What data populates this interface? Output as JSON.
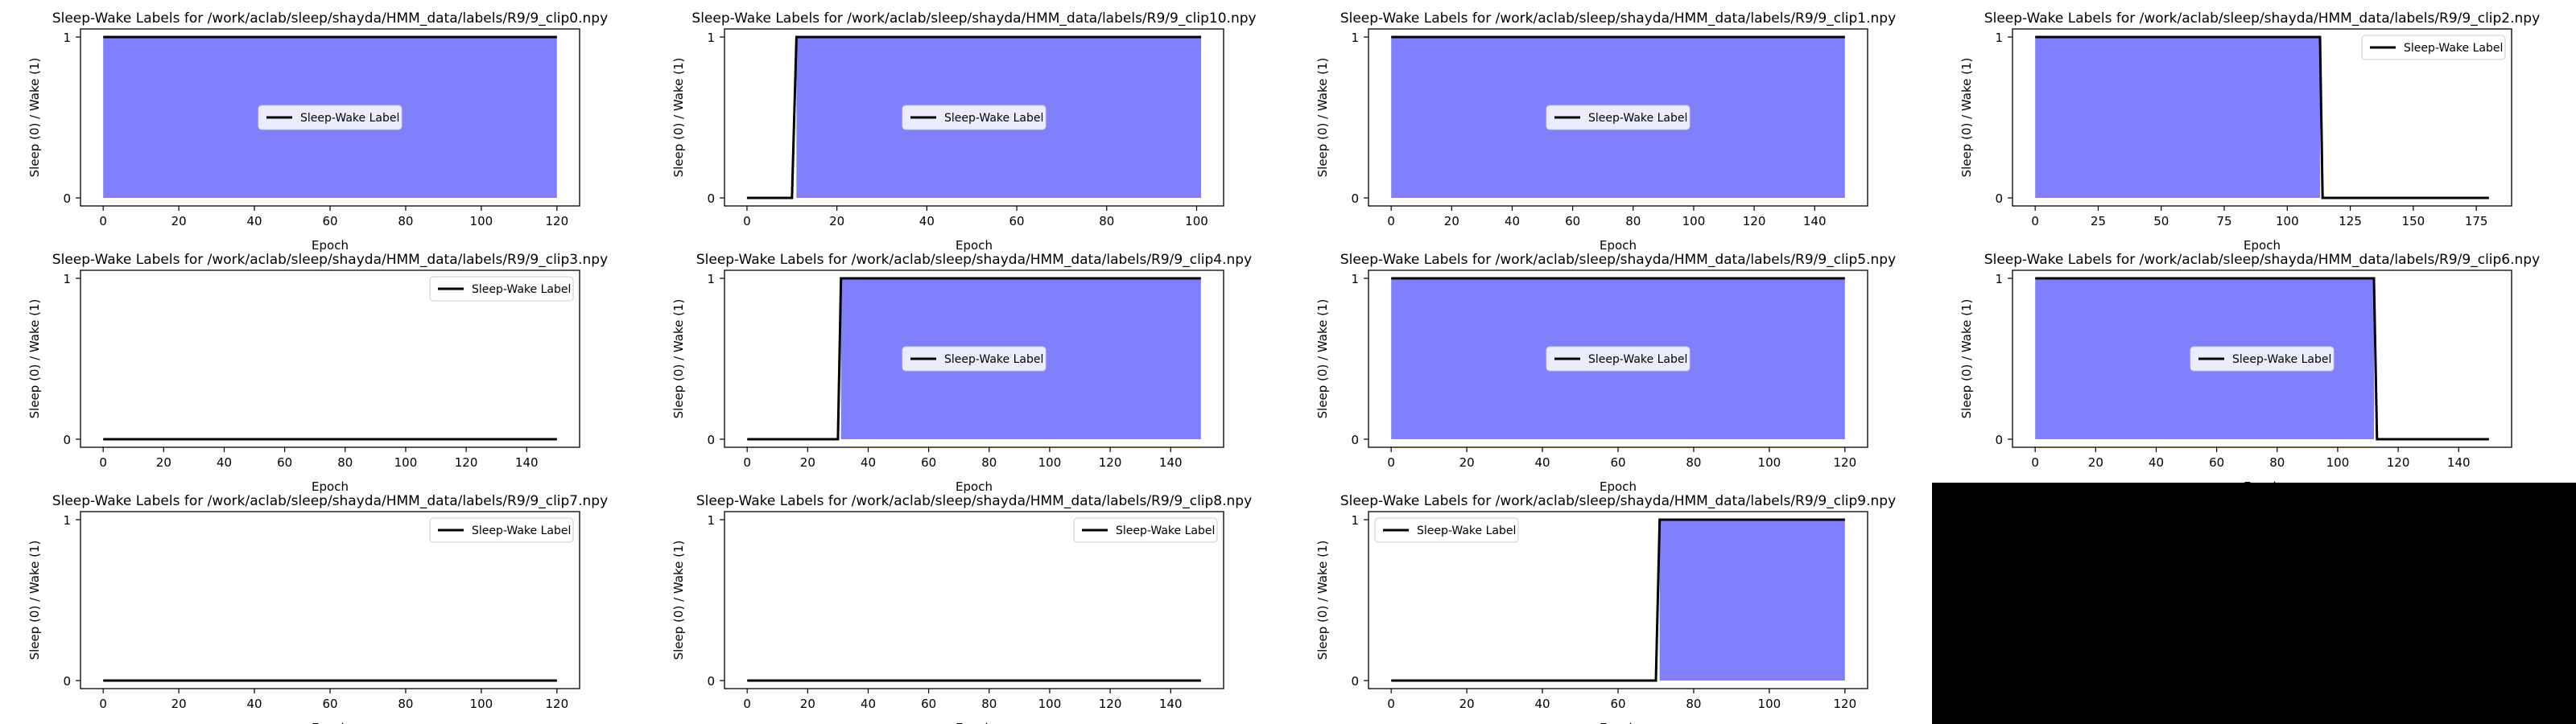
{
  "figure": {
    "ylabel": "Sleep (0) / Wake (1)",
    "xlabel_clipped": "Epoch",
    "legend_label": "Sleep-Wake Label",
    "yticks": [
      "0",
      "1"
    ],
    "colors": {
      "line": "#000000",
      "fill": "#8080ff",
      "axes": "#000000",
      "background": "#ffffff",
      "black_panel": "#000000"
    }
  },
  "chart_data": [
    {
      "type": "area",
      "title": "Sleep-Wake Labels for /work/aclab/sleep/shayda/HMM_data/labels/R9/9_clip0.npy",
      "xlim": [
        -6,
        126
      ],
      "ylim": [
        -0.05,
        1.05
      ],
      "xticks": [
        0,
        20,
        40,
        60,
        80,
        100,
        120
      ],
      "segments": [
        [
          0,
          120,
          1
        ]
      ],
      "legend": "center"
    },
    {
      "type": "area",
      "title": "Sleep-Wake Labels for /work/aclab/sleep/shayda/HMM_data/labels/R9/9_clip10.npy",
      "xlim": [
        -5,
        106
      ],
      "ylim": [
        -0.05,
        1.05
      ],
      "xticks": [
        0,
        20,
        40,
        60,
        80,
        100
      ],
      "segments": [
        [
          0,
          10,
          0
        ],
        [
          11,
          101,
          1
        ]
      ],
      "legend": "center"
    },
    {
      "type": "area",
      "title": "Sleep-Wake Labels for /work/aclab/sleep/shayda/HMM_data/labels/R9/9_clip1.npy",
      "xlim": [
        -7.5,
        157.5
      ],
      "ylim": [
        -0.05,
        1.05
      ],
      "xticks": [
        0,
        20,
        40,
        60,
        80,
        100,
        120,
        140
      ],
      "segments": [
        [
          0,
          150,
          1
        ]
      ],
      "legend": "center"
    },
    {
      "type": "area",
      "title": "Sleep-Wake Labels for /work/aclab/sleep/shayda/HMM_data/labels/R9/9_clip2.npy",
      "xlim": [
        -9,
        189
      ],
      "ylim": [
        -0.05,
        1.05
      ],
      "xticks": [
        0,
        25,
        50,
        75,
        100,
        125,
        150,
        175
      ],
      "segments": [
        [
          0,
          113,
          1
        ],
        [
          114,
          180,
          0
        ]
      ],
      "legend": "upper right"
    },
    {
      "type": "area",
      "title": "Sleep-Wake Labels for /work/aclab/sleep/shayda/HMM_data/labels/R9/9_clip3.npy",
      "xlim": [
        -7.5,
        157.5
      ],
      "ylim": [
        -0.05,
        1.05
      ],
      "xticks": [
        0,
        20,
        40,
        60,
        80,
        100,
        120,
        140
      ],
      "segments": [
        [
          0,
          150,
          0
        ]
      ],
      "legend": "upper right"
    },
    {
      "type": "area",
      "title": "Sleep-Wake Labels for /work/aclab/sleep/shayda/HMM_data/labels/R9/9_clip4.npy",
      "xlim": [
        -7.5,
        157.5
      ],
      "ylim": [
        -0.05,
        1.05
      ],
      "xticks": [
        0,
        20,
        40,
        60,
        80,
        100,
        120,
        140
      ],
      "segments": [
        [
          0,
          30,
          0
        ],
        [
          31,
          150,
          1
        ]
      ],
      "legend": "center"
    },
    {
      "type": "area",
      "title": "Sleep-Wake Labels for /work/aclab/sleep/shayda/HMM_data/labels/R9/9_clip5.npy",
      "xlim": [
        -6,
        126
      ],
      "ylim": [
        -0.05,
        1.05
      ],
      "xticks": [
        0,
        20,
        40,
        60,
        80,
        100,
        120
      ],
      "segments": [
        [
          0,
          120,
          1
        ]
      ],
      "legend": "center"
    },
    {
      "type": "area",
      "title": "Sleep-Wake Labels for /work/aclab/sleep/shayda/HMM_data/labels/R9/9_clip6.npy",
      "xlim": [
        -7.5,
        157.5
      ],
      "ylim": [
        -0.05,
        1.05
      ],
      "xticks": [
        0,
        20,
        40,
        60,
        80,
        100,
        120,
        140
      ],
      "segments": [
        [
          0,
          112,
          1
        ],
        [
          113,
          150,
          0
        ]
      ],
      "legend": "center"
    },
    {
      "type": "area",
      "title": "Sleep-Wake Labels for /work/aclab/sleep/shayda/HMM_data/labels/R9/9_clip7.npy",
      "xlim": [
        -6,
        126
      ],
      "ylim": [
        -0.05,
        1.05
      ],
      "xticks": [
        0,
        20,
        40,
        60,
        80,
        100,
        120
      ],
      "segments": [
        [
          0,
          120,
          0
        ]
      ],
      "legend": "upper right"
    },
    {
      "type": "area",
      "title": "Sleep-Wake Labels for /work/aclab/sleep/shayda/HMM_data/labels/R9/9_clip8.npy",
      "xlim": [
        -7.5,
        157.5
      ],
      "ylim": [
        -0.05,
        1.05
      ],
      "xticks": [
        0,
        20,
        40,
        60,
        80,
        100,
        120,
        140
      ],
      "segments": [
        [
          0,
          150,
          0
        ]
      ],
      "legend": "upper right"
    },
    {
      "type": "area",
      "title": "Sleep-Wake Labels for /work/aclab/sleep/shayda/HMM_data/labels/R9/9_clip9.npy",
      "xlim": [
        -6,
        126
      ],
      "ylim": [
        -0.05,
        1.05
      ],
      "xticks": [
        0,
        20,
        40,
        60,
        80,
        100,
        120
      ],
      "segments": [
        [
          0,
          70,
          0
        ],
        [
          71,
          120,
          1
        ]
      ],
      "legend": "upper left"
    }
  ]
}
